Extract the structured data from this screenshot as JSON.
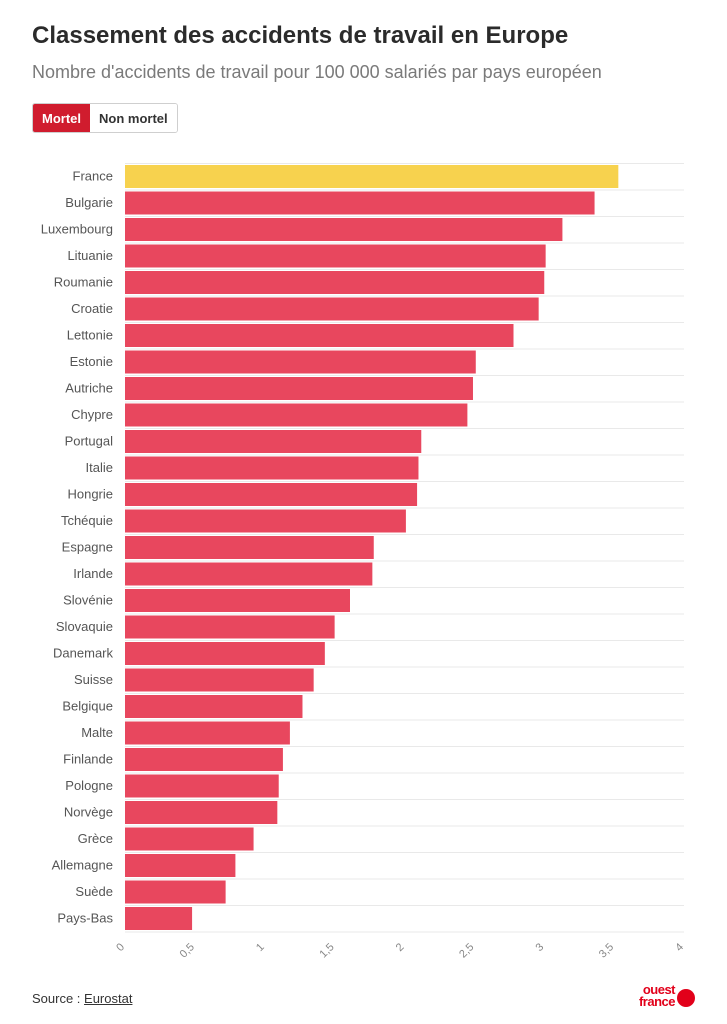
{
  "header": {
    "title": "Classement des accidents de travail en Europe",
    "subtitle": "Nombre d'accidents de travail pour 100 000 salariés par pays européen"
  },
  "toggle": {
    "active_label": "Mortel",
    "inactive_label": "Non mortel"
  },
  "source": {
    "prefix": "Source : ",
    "link": "Eurostat"
  },
  "logo": {
    "line1": "ouest",
    "line2": "france"
  },
  "colors": {
    "bar": "#e8475e",
    "highlight": "#f7d24e",
    "grid": "#e9e9e9",
    "toggle_active": "#d01c2e",
    "brand": "#e2001a"
  },
  "chart_data": {
    "type": "bar",
    "orientation": "horizontal",
    "categories": [
      "France",
      "Bulgarie",
      "Luxembourg",
      "Lituanie",
      "Roumanie",
      "Croatie",
      "Lettonie",
      "Estonie",
      "Autriche",
      "Chypre",
      "Portugal",
      "Italie",
      "Hongrie",
      "Tchéquie",
      "Espagne",
      "Irlande",
      "Slovénie",
      "Slovaquie",
      "Danemark",
      "Suisse",
      "Belgique",
      "Malte",
      "Finlande",
      "Pologne",
      "Norvège",
      "Grèce",
      "Allemagne",
      "Suède",
      "Pays-Bas"
    ],
    "values": [
      3.53,
      3.36,
      3.13,
      3.01,
      3.0,
      2.96,
      2.78,
      2.51,
      2.49,
      2.45,
      2.12,
      2.1,
      2.09,
      2.01,
      1.78,
      1.77,
      1.61,
      1.5,
      1.43,
      1.35,
      1.27,
      1.18,
      1.13,
      1.1,
      1.09,
      0.92,
      0.79,
      0.72,
      0.48
    ],
    "highlight_category": "France",
    "xlim": [
      0,
      4
    ],
    "xticks": [
      "0",
      "0,5",
      "1",
      "1,5",
      "2",
      "2,5",
      "3",
      "3,5",
      "4"
    ],
    "grid": true
  }
}
